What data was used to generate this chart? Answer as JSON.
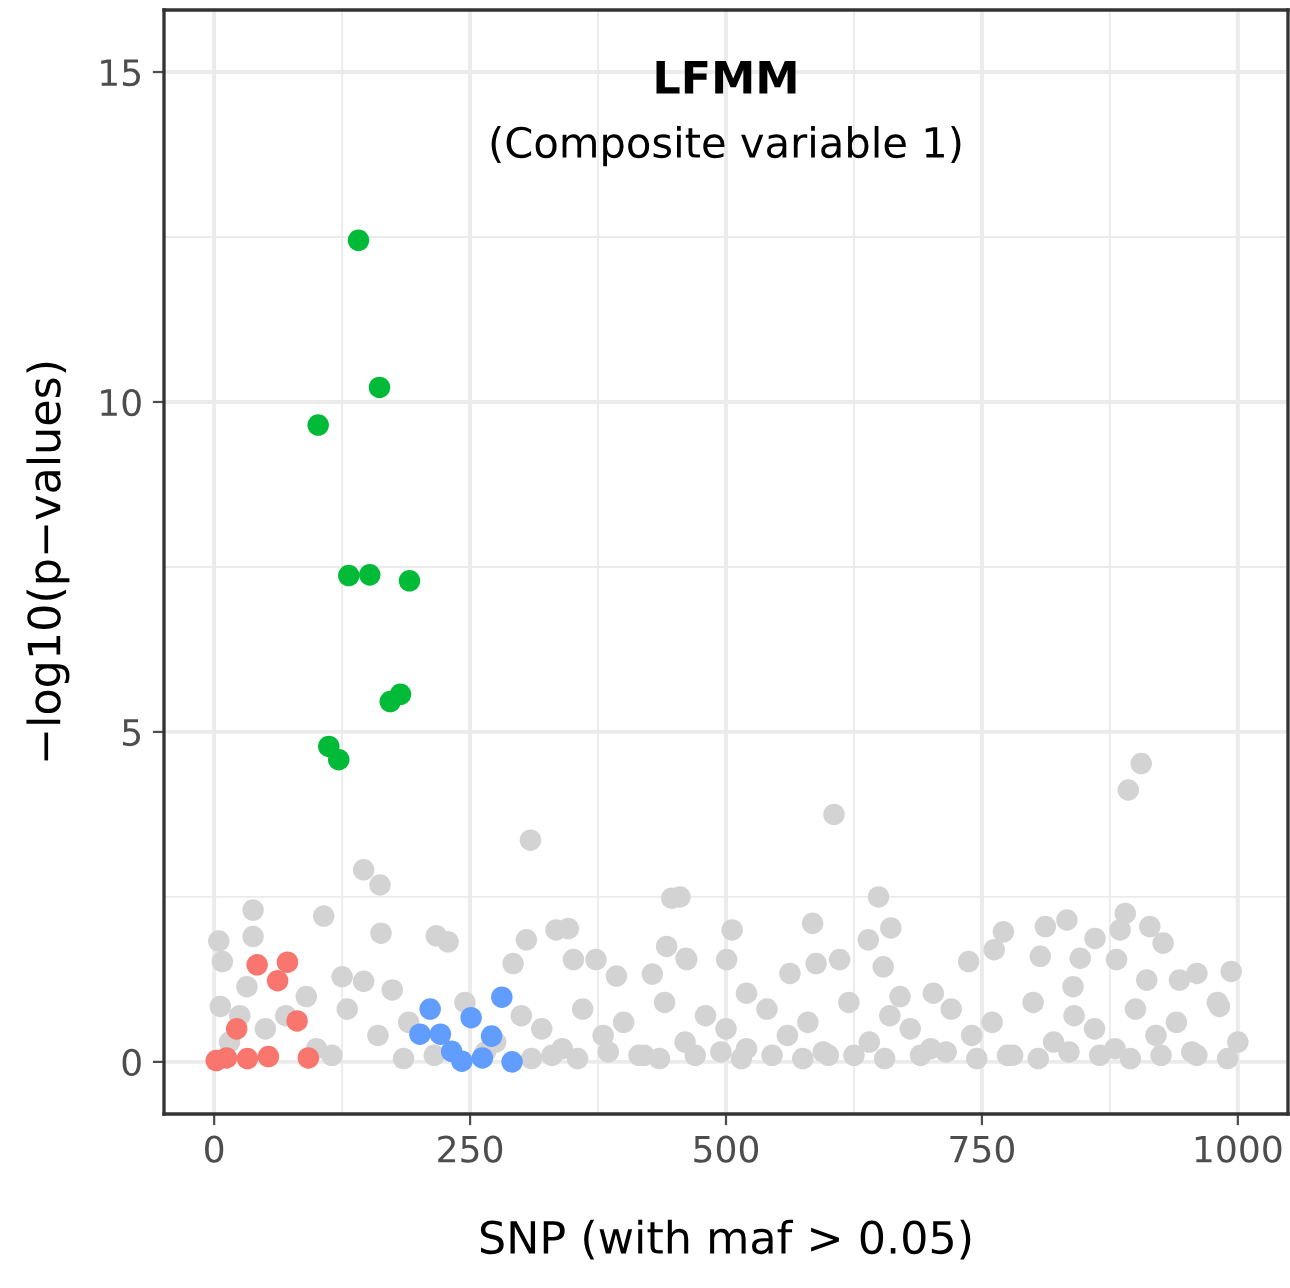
{
  "chart_data": {
    "type": "scatter",
    "title": "LFMM",
    "subtitle": "(Composite variable 1)",
    "xlabel": "SNP (with maf > 0.05)",
    "ylabel": "−log10(p−values)",
    "xlim": [
      -49,
      1049
    ],
    "ylim": [
      -0.79,
      15.94
    ],
    "xticks": [
      0,
      250,
      500,
      750,
      1000
    ],
    "yticks": [
      0,
      5,
      10,
      15
    ],
    "grid": true,
    "marker": "circle",
    "series": [
      {
        "color": "#d3d3d3",
        "x": [
          4.5,
          38,
          38,
          107,
          146,
          162,
          163,
          309,
          217,
          228.5,
          8,
          125,
          146,
          305,
          334,
          346,
          292,
          351,
          373,
          393,
          447,
          442,
          461,
          428,
          174,
          90,
          32,
          6,
          605.5,
          893,
          905.6,
          649,
          661,
          639,
          584.6,
          506,
          455,
          771,
          762,
          812,
          833,
          890,
          885,
          914,
          927,
          860.5,
          807,
          846,
          737,
          500.6,
          461.6,
          611,
          588,
          653.6,
          562.5,
          993.5,
          960,
          943,
          881.5,
          670,
          520,
          702.5,
          982,
          839,
          911,
          15,
          50,
          70,
          100,
          130,
          160,
          190,
          215,
          245,
          275,
          300,
          320,
          340,
          360,
          380,
          400,
          420,
          440,
          460,
          480,
          500,
          520,
          540,
          560,
          580,
          600,
          620,
          640,
          660,
          680,
          700,
          720,
          740,
          760,
          780,
          800,
          820,
          840,
          860,
          880,
          900,
          920,
          940,
          960,
          980,
          1000,
          25,
          115,
          185,
          265,
          310,
          330,
          355,
          385,
          415,
          435,
          470,
          495,
          515,
          545,
          575,
          595,
          625,
          655,
          690,
          715,
          745,
          775,
          805,
          835,
          865,
          895,
          925,
          955,
          990
        ],
        "values": [
          1.83,
          2.3,
          1.9,
          2.21,
          2.91,
          2.68,
          1.95,
          3.36,
          1.91,
          1.82,
          1.52,
          1.29,
          1.22,
          1.85,
          2.0,
          2.02,
          1.49,
          1.55,
          1.55,
          1.3,
          2.48,
          1.75,
          1.57,
          1.33,
          1.09,
          0.99,
          1.14,
          0.84,
          3.75,
          4.12,
          4.52,
          2.5,
          2.03,
          1.85,
          2.1,
          2.0,
          2.5,
          1.97,
          1.7,
          2.05,
          2.15,
          2.25,
          2.0,
          2.05,
          1.8,
          1.87,
          1.6,
          1.57,
          1.52,
          1.55,
          1.55,
          1.55,
          1.49,
          1.44,
          1.34,
          1.37,
          1.34,
          1.24,
          1.55,
          0.99,
          1.04,
          1.04,
          0.84,
          1.14,
          1.24,
          0.3,
          0.5,
          0.7,
          0.2,
          0.8,
          0.4,
          0.6,
          0.1,
          0.9,
          0.3,
          0.7,
          0.5,
          0.2,
          0.8,
          0.4,
          0.6,
          0.1,
          0.9,
          0.3,
          0.7,
          0.5,
          0.2,
          0.8,
          0.4,
          0.6,
          0.1,
          0.9,
          0.3,
          0.7,
          0.5,
          0.2,
          0.8,
          0.4,
          0.6,
          0.1,
          0.9,
          0.3,
          0.7,
          0.5,
          0.2,
          0.8,
          0.4,
          0.6,
          0.1,
          0.9,
          0.3,
          0.7,
          0.1,
          0.05,
          0.15,
          0.05,
          0.1,
          0.05,
          0.15,
          0.1,
          0.05,
          0.1,
          0.15,
          0.05,
          0.1,
          0.05,
          0.15,
          0.1,
          0.05,
          0.1,
          0.15,
          0.05,
          0.1,
          0.05,
          0.15,
          0.1,
          0.05,
          0.1,
          0.15,
          0.05
        ]
      },
      {
        "color": "#f8766d",
        "x": [
          42,
          71.6,
          62,
          22,
          81,
          2,
          12,
          32.5,
          53,
          92
        ],
        "values": [
          1.47,
          1.51,
          1.23,
          0.5,
          0.62,
          0.02,
          0.06,
          0.05,
          0.08,
          0.06
        ]
      },
      {
        "color": "#00ba38",
        "x": [
          141,
          161.5,
          101.6,
          131.5,
          152,
          190.8,
          172,
          182,
          112,
          121.7
        ],
        "values": [
          12.45,
          10.22,
          9.65,
          7.37,
          7.38,
          7.29,
          5.46,
          5.57,
          4.78,
          4.58
        ]
      },
      {
        "color": "#619cff",
        "x": [
          211,
          251,
          281,
          201,
          221,
          271,
          232,
          242,
          262,
          291
        ],
        "values": [
          0.8,
          0.67,
          0.98,
          0.42,
          0.42,
          0.39,
          0.16,
          0.01,
          0.06,
          0.0
        ]
      }
    ]
  }
}
